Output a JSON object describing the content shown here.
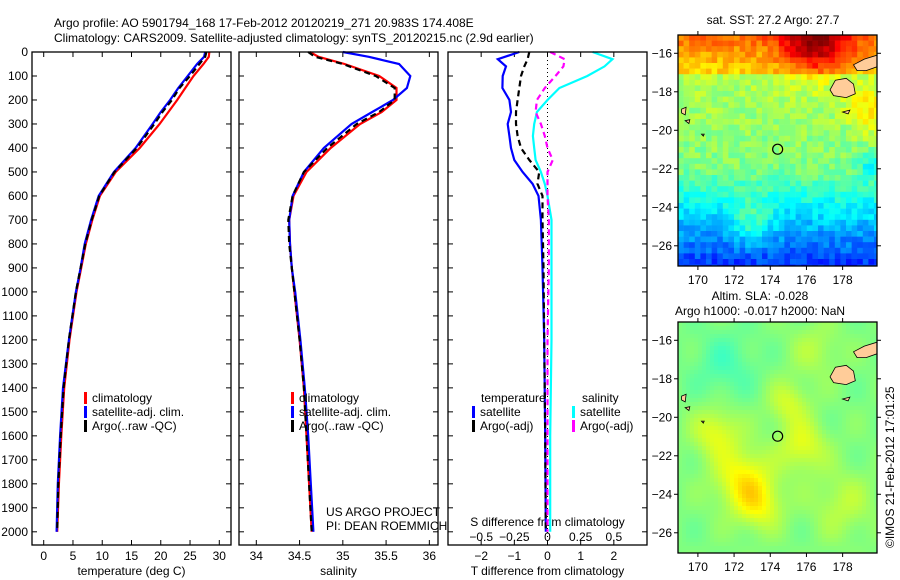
{
  "title": {
    "line1": "Argo profile: AO 5901794_168 17-Feb-2012 20120219_271 20.983S 174.408E",
    "line2": "Climatology: CARS2009. Satellite-adjusted climatology: synTS_20120215.nc (2.9d earlier)"
  },
  "credit": "©IMOS 21-Feb-2012 17:01:25",
  "colors": {
    "climatology": "#ff0000",
    "satellite": "#0000ff",
    "argo": "#000000",
    "s_satellite": "#00ffff",
    "s_argo": "#ff00ff",
    "land": "#ffcc99"
  },
  "chart_data": [
    {
      "type": "line",
      "id": "temperature",
      "xlabel": "temperature (deg C)",
      "ylabel": "",
      "xlim": [
        -2,
        32
      ],
      "ylim": [
        2055,
        0
      ],
      "xticks": [
        0,
        5,
        10,
        15,
        20,
        25,
        30
      ],
      "yticks": [
        0,
        100,
        200,
        300,
        400,
        500,
        600,
        700,
        800,
        900,
        1000,
        1100,
        1200,
        1300,
        1400,
        1500,
        1600,
        1700,
        1800,
        1900,
        2000
      ],
      "legend": [
        "climatology",
        "satellite-adj. clim.",
        "Argo(..raw -QC)"
      ],
      "depth": [
        0,
        20,
        50,
        100,
        150,
        200,
        250,
        300,
        400,
        500,
        600,
        700,
        800,
        900,
        1000,
        1200,
        1400,
        1600,
        1800,
        2000
      ],
      "series": [
        {
          "name": "climatology",
          "values": [
            28.3,
            28.2,
            27.3,
            25.6,
            24.2,
            22.8,
            21.3,
            19.8,
            16.4,
            12.3,
            9.6,
            8.3,
            7.2,
            6.4,
            5.6,
            4.4,
            3.5,
            3.0,
            2.6,
            2.3
          ]
        },
        {
          "name": "satellite-adj. clim.",
          "values": [
            27.6,
            27.4,
            26.2,
            24.6,
            23.0,
            21.6,
            20.0,
            18.6,
            15.7,
            12.0,
            9.4,
            8.1,
            7.0,
            6.3,
            5.5,
            4.3,
            3.3,
            2.8,
            2.4,
            2.2
          ]
        },
        {
          "name": "Argo(..raw -QC)",
          "values": [
            27.8,
            27.6,
            26.6,
            25.0,
            23.2,
            21.9,
            20.3,
            18.9,
            15.9,
            12.1,
            9.5,
            8.2,
            7.1,
            6.3,
            5.5,
            4.3,
            3.4,
            2.9,
            2.5,
            2.3
          ]
        }
      ]
    },
    {
      "type": "line",
      "id": "salinity",
      "xlabel": "salinity",
      "xlim": [
        33.8,
        36.1
      ],
      "ylim": [
        2055,
        0
      ],
      "xticks": [
        34,
        34.5,
        35,
        35.5,
        36
      ],
      "legend": [
        "climatology",
        "satellite-adj. clim.",
        "Argo(..raw -QC)"
      ],
      "annotation": [
        "US ARGO PROJECT",
        "PI: DEAN ROEMMICH"
      ],
      "depth": [
        0,
        20,
        50,
        100,
        150,
        200,
        250,
        300,
        400,
        500,
        600,
        700,
        800,
        900,
        1000,
        1200,
        1400,
        1600,
        1800,
        2000
      ],
      "series": [
        {
          "name": "climatology",
          "values": [
            34.62,
            34.72,
            35.02,
            35.42,
            35.62,
            35.62,
            35.45,
            35.2,
            34.86,
            34.58,
            34.43,
            34.38,
            34.39,
            34.41,
            34.44,
            34.5,
            34.55,
            34.58,
            34.61,
            34.64
          ]
        },
        {
          "name": "satellite-adj. clim.",
          "values": [
            35.0,
            35.3,
            35.65,
            35.78,
            35.74,
            35.58,
            35.34,
            35.1,
            34.78,
            34.55,
            34.42,
            34.38,
            34.39,
            34.41,
            34.45,
            34.51,
            34.56,
            34.6,
            34.63,
            34.66
          ]
        },
        {
          "name": "Argo(..raw -QC)",
          "values": [
            34.6,
            34.68,
            35.0,
            35.38,
            35.6,
            35.6,
            35.42,
            35.16,
            34.82,
            34.55,
            34.42,
            34.37,
            34.38,
            34.41,
            34.44,
            34.5,
            34.55,
            34.58,
            34.61,
            34.64
          ]
        }
      ]
    },
    {
      "type": "line",
      "id": "difference",
      "xlabel": "T difference from climatology",
      "x2label": "S difference from climatology",
      "xlim": [
        -3,
        3
      ],
      "ylim": [
        2055,
        0
      ],
      "xticks": [
        -2,
        -1,
        0,
        1,
        2
      ],
      "x2ticks": [
        -0.5,
        -0.25,
        0,
        0.25,
        0.5
      ],
      "legend_headers": [
        "temperature",
        "salinity"
      ],
      "legend": [
        "satellite",
        "Argo(-adj)",
        "satellite",
        "Argo(-adj)"
      ],
      "depth": [
        0,
        30,
        60,
        100,
        150,
        200,
        250,
        300,
        350,
        400,
        450,
        500,
        550,
        600,
        700,
        900,
        1200,
        1600,
        2000
      ],
      "series": [
        {
          "name": "T satellite",
          "axis": "T",
          "values": [
            -0.85,
            -1.5,
            -1.25,
            -1.35,
            -1.36,
            -1.15,
            -1.1,
            -1.2,
            -1.15,
            -1.1,
            -1.0,
            -0.75,
            -0.45,
            -0.27,
            -0.2,
            -0.15,
            -0.1,
            -0.07,
            -0.05
          ]
        },
        {
          "name": "T Argo(-adj)",
          "axis": "T",
          "values": [
            -0.55,
            -0.6,
            -0.7,
            -0.8,
            -0.85,
            -0.9,
            -0.95,
            -0.95,
            -0.9,
            -0.8,
            -0.55,
            -0.25,
            -0.3,
            -0.15,
            -0.15,
            -0.12,
            -0.1,
            -0.07,
            -0.05
          ]
        },
        {
          "name": "S satellite",
          "axis": "S",
          "values": [
            0.34,
            0.49,
            0.43,
            0.3,
            0.09,
            0.0,
            -0.08,
            -0.1,
            -0.11,
            -0.1,
            -0.09,
            -0.05,
            -0.02,
            0.0,
            0.03,
            0.03,
            0.03,
            0.02,
            0.02
          ]
        },
        {
          "name": "S Argo(-adj)",
          "axis": "S",
          "values": [
            0.02,
            0.13,
            0.12,
            0.06,
            -0.02,
            -0.08,
            -0.09,
            -0.05,
            -0.02,
            0.0,
            0.04,
            0.0,
            0.0,
            0.0,
            0.01,
            0.01,
            0.0,
            0.0,
            0.0
          ]
        }
      ]
    },
    {
      "type": "heatmap",
      "id": "sst-map",
      "title": "sat. SST: 27.2  Argo: 27.7",
      "xlim": [
        168.9,
        179.9
      ],
      "ylim": [
        -27.05,
        -15.05
      ],
      "xticks": [
        170,
        172,
        174,
        176,
        178
      ],
      "yticks": [
        -16,
        -18,
        -20,
        -22,
        -24,
        -26
      ],
      "marker": {
        "lon": 174.408,
        "lat": -20.983
      }
    },
    {
      "type": "heatmap",
      "id": "sla-map",
      "title": [
        "Altim. SLA: -0.028",
        "Argo h1000: -0.017 h2000: NaN"
      ],
      "xlim": [
        168.9,
        179.9
      ],
      "ylim": [
        -27.05,
        -15.05
      ],
      "xticks": [
        170,
        172,
        174,
        176,
        178
      ],
      "yticks": [
        -16,
        -18,
        -20,
        -22,
        -24,
        -26
      ],
      "marker": {
        "lon": 174.408,
        "lat": -20.983
      }
    }
  ]
}
